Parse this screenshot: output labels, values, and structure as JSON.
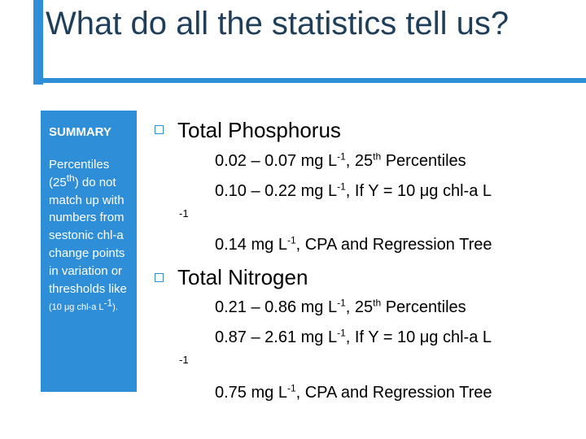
{
  "slide": {
    "title": "What do all the statistics tell us?",
    "accent_color": "#2e8fd8",
    "title_color": "#1f3e5a"
  },
  "summary": {
    "heading": "SUMMARY",
    "body": "Percentiles (25",
    "body_sup": "th",
    "body_rest": ") do not match up with numbers from sestonic chl-a change points in variation or thresholds like",
    "body_small_a": "(10 μg chl-a L",
    "body_small_sup": "-1",
    "body_small_b": ")."
  },
  "phosphorus": {
    "title": "Total Phosphorus",
    "line1_a": "0.02 – 0.07 mg L",
    "line1_sup1": "-1",
    "line1_b": ", 25",
    "line1_sup2": "th",
    "line1_c": " Percentiles",
    "line2": "0.10 – 0.22 mg L",
    "line2_sup": "-1",
    "line2_b": ", If Y = 10 μg chl-a L",
    "stray_exp": "-1",
    "line3_a": "0.14 mg L",
    "line3_sup": "-1",
    "line3_b": ", CPA and Regression Tree"
  },
  "nitrogen": {
    "title": "Total Nitrogen",
    "line1_a": "0.21 – 0.86 mg L",
    "line1_sup1": "-1",
    "line1_b": ", 25",
    "line1_sup2": "th",
    "line1_c": " Percentiles",
    "line2": "0.87 – 2.61 mg L",
    "line2_sup": "-1",
    "line2_b": ", If Y = 10 μg chl-a L",
    "stray_exp": "-1",
    "line3_a": "0.75 mg L",
    "line3_sup": "-1",
    "line3_b": ", CPA and Regression Tree"
  }
}
